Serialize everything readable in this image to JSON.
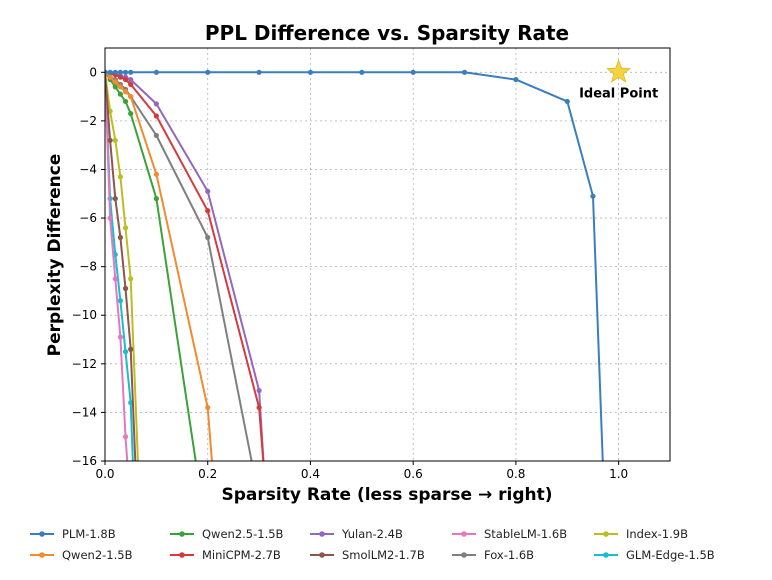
{
  "chart_data": {
    "type": "line",
    "title": "PPL Difference vs. Sparsity Rate",
    "xlabel": "Sparsity Rate (less sparse → right)",
    "ylabel": "Perplexity Difference",
    "xlim": [
      0.0,
      1.1
    ],
    "ylim": [
      -16,
      1
    ],
    "xticks": [
      "0.0",
      "0.2",
      "0.4",
      "0.6",
      "0.8",
      "1.0"
    ],
    "yticks": [
      "0",
      "−2",
      "−4",
      "−6",
      "−8",
      "−10",
      "−12",
      "−14",
      "−16"
    ],
    "grid": true,
    "legend_position": "below",
    "annotation": {
      "text": "Ideal Point",
      "x": 1.0,
      "y": 0
    },
    "series": [
      {
        "name": "PLM-1.8B",
        "color": "#3a7ebf",
        "points": [
          [
            0,
            0
          ],
          [
            0.01,
            0
          ],
          [
            0.02,
            0
          ],
          [
            0.03,
            0
          ],
          [
            0.04,
            0
          ],
          [
            0.05,
            0
          ],
          [
            0.1,
            0
          ],
          [
            0.2,
            0
          ],
          [
            0.3,
            0
          ],
          [
            0.4,
            0
          ],
          [
            0.5,
            0
          ],
          [
            0.6,
            0
          ],
          [
            0.7,
            0
          ],
          [
            0.8,
            -0.3
          ],
          [
            0.9,
            -1.2
          ],
          [
            0.95,
            -5.1
          ],
          [
            0.97,
            -16.5
          ]
        ]
      },
      {
        "name": "Qwen2-1.5B",
        "color": "#f28a2e",
        "points": [
          [
            0,
            0
          ],
          [
            0.01,
            -0.2
          ],
          [
            0.02,
            -0.4
          ],
          [
            0.03,
            -0.6
          ],
          [
            0.04,
            -0.8
          ],
          [
            0.05,
            -1.0
          ],
          [
            0.1,
            -4.2
          ],
          [
            0.2,
            -13.8
          ],
          [
            0.21,
            -16.5
          ]
        ]
      },
      {
        "name": "Qwen2.5-1.5B",
        "color": "#3aa23a",
        "points": [
          [
            0,
            0
          ],
          [
            0.01,
            -0.3
          ],
          [
            0.02,
            -0.6
          ],
          [
            0.03,
            -0.9
          ],
          [
            0.04,
            -1.2
          ],
          [
            0.05,
            -1.7
          ],
          [
            0.1,
            -5.2
          ],
          [
            0.18,
            -16.5
          ]
        ]
      },
      {
        "name": "MiniCPM-2.7B",
        "color": "#d63a3a",
        "points": [
          [
            0,
            0
          ],
          [
            0.01,
            -0.05
          ],
          [
            0.02,
            -0.1
          ],
          [
            0.03,
            -0.2
          ],
          [
            0.04,
            -0.3
          ],
          [
            0.05,
            -0.5
          ],
          [
            0.1,
            -1.8
          ],
          [
            0.2,
            -5.7
          ],
          [
            0.3,
            -13.8
          ],
          [
            0.31,
            -16.5
          ]
        ]
      },
      {
        "name": "Yulan-2.4B",
        "color": "#9467bd",
        "points": [
          [
            0,
            0
          ],
          [
            0.01,
            -0.03
          ],
          [
            0.02,
            -0.08
          ],
          [
            0.03,
            -0.15
          ],
          [
            0.04,
            -0.2
          ],
          [
            0.05,
            -0.3
          ],
          [
            0.1,
            -1.3
          ],
          [
            0.2,
            -4.9
          ],
          [
            0.3,
            -13.1
          ],
          [
            0.31,
            -16.5
          ]
        ]
      },
      {
        "name": "SmolLM2-1.7B",
        "color": "#8c564b",
        "points": [
          [
            0,
            0
          ],
          [
            0.01,
            -2.8
          ],
          [
            0.02,
            -5.2
          ],
          [
            0.03,
            -6.8
          ],
          [
            0.04,
            -8.9
          ],
          [
            0.05,
            -11.4
          ],
          [
            0.06,
            -16.5
          ]
        ]
      },
      {
        "name": "StableLM-1.6B",
        "color": "#e377c2",
        "points": [
          [
            0,
            0
          ],
          [
            0.01,
            -6.0
          ],
          [
            0.02,
            -8.5
          ],
          [
            0.03,
            -10.9
          ],
          [
            0.04,
            -15.0
          ],
          [
            0.045,
            -16.5
          ]
        ]
      },
      {
        "name": "Fox-1.6B",
        "color": "#7f7f7f",
        "points": [
          [
            0,
            0
          ],
          [
            0.01,
            -0.2
          ],
          [
            0.02,
            -0.3
          ],
          [
            0.03,
            -0.5
          ],
          [
            0.04,
            -0.7
          ],
          [
            0.05,
            -1.0
          ],
          [
            0.1,
            -2.6
          ],
          [
            0.2,
            -6.8
          ],
          [
            0.29,
            -16.5
          ]
        ]
      },
      {
        "name": "Index-1.9B",
        "color": "#bcbd22",
        "points": [
          [
            0,
            0
          ],
          [
            0.01,
            -1.6
          ],
          [
            0.02,
            -2.8
          ],
          [
            0.03,
            -4.3
          ],
          [
            0.04,
            -6.4
          ],
          [
            0.05,
            -8.5
          ],
          [
            0.065,
            -16.5
          ]
        ]
      },
      {
        "name": "GLM-Edge-1.5B",
        "color": "#17becf",
        "points": [
          [
            0,
            0
          ],
          [
            0.01,
            -5.2
          ],
          [
            0.02,
            -7.5
          ],
          [
            0.03,
            -9.4
          ],
          [
            0.04,
            -11.5
          ],
          [
            0.05,
            -13.6
          ],
          [
            0.055,
            -16.5
          ]
        ]
      }
    ]
  }
}
